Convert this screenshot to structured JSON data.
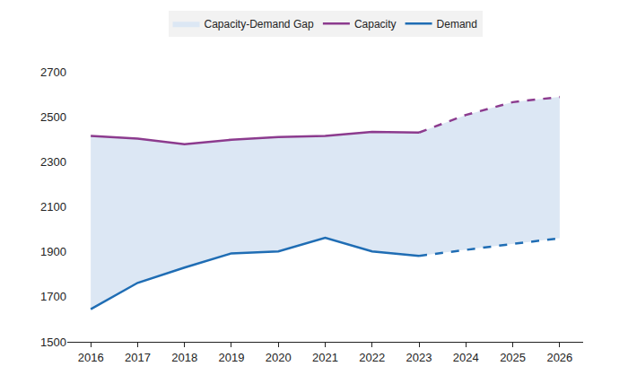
{
  "chart_data": {
    "type": "line",
    "x": [
      2016,
      2017,
      2018,
      2019,
      2020,
      2021,
      2022,
      2023,
      2024,
      2025,
      2026
    ],
    "xlim": [
      2015.5,
      2026.5
    ],
    "xticks": [
      2016,
      2017,
      2018,
      2019,
      2020,
      2021,
      2022,
      2023,
      2024,
      2025,
      2026
    ],
    "ylim": [
      1500,
      2700
    ],
    "yticks": [
      1500,
      1700,
      1900,
      2100,
      2300,
      2500,
      2700
    ],
    "grid": false,
    "legend": "top",
    "series": [
      {
        "name": "Capacity-Demand Gap",
        "type": "area",
        "color": "#dce7f4"
      },
      {
        "name": "Capacity",
        "color": "#8c3b8e",
        "line_style": "solid",
        "values": [
          2415,
          2403,
          2378,
          2398,
          2410,
          2415,
          2433,
          2430,
          null,
          null,
          null
        ]
      },
      {
        "name": "Capacity",
        "color": "#8c3b8e",
        "line_style": "dashed",
        "values": [
          null,
          null,
          null,
          null,
          null,
          null,
          null,
          2430,
          2508,
          2565,
          2588
        ]
      },
      {
        "name": "Demand",
        "color": "#1f6db4",
        "line_style": "solid",
        "values": [
          1645,
          1762,
          1830,
          1893,
          1902,
          1962,
          1902,
          1882,
          null,
          null,
          null
        ]
      },
      {
        "name": "Demand",
        "color": "#1f6db4",
        "line_style": "dashed",
        "values": [
          null,
          null,
          null,
          null,
          null,
          null,
          null,
          1882,
          1910,
          1935,
          1960
        ]
      }
    ]
  }
}
